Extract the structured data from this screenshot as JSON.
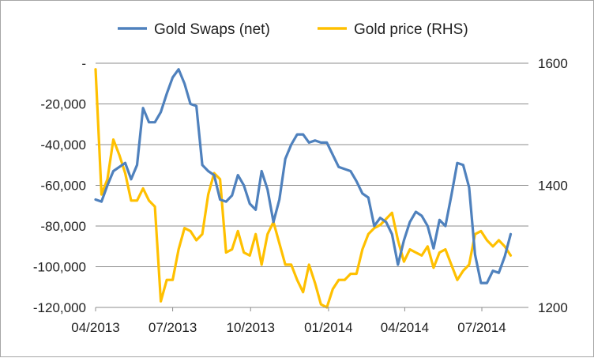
{
  "chart_data": {
    "type": "line",
    "title": "",
    "xlabel": "",
    "ylabel": "",
    "x_tick_labels": [
      "04/2013",
      "07/2013",
      "10/2013",
      "01/2014",
      "04/2014",
      "07/2014"
    ],
    "y_left": {
      "ylim": [
        -120000,
        0
      ],
      "tick_values": [
        0,
        -20000,
        -40000,
        -60000,
        -80000,
        -100000,
        -120000
      ],
      "tick_labels": [
        "-",
        "-20,000",
        "-40,000",
        "-60,000",
        "-80,000",
        "-100,000",
        "-120,000"
      ]
    },
    "y_right": {
      "ylim": [
        1200,
        1600
      ],
      "tick_values": [
        1600,
        1400,
        1200
      ],
      "tick_labels": [
        "1600",
        "1400",
        "1200"
      ]
    },
    "grid": "horizontal",
    "legend_position": "top",
    "series": [
      {
        "name": "Gold Swaps (net)",
        "axis": "left",
        "color": "#4f81bd",
        "x": [
          "2013-04-01",
          "2013-04-08",
          "2013-04-15",
          "2013-04-22",
          "2013-04-29",
          "2013-05-06",
          "2013-05-13",
          "2013-05-20",
          "2013-05-27",
          "2013-06-03",
          "2013-06-10",
          "2013-06-17",
          "2013-06-24",
          "2013-07-01",
          "2013-07-08",
          "2013-07-15",
          "2013-07-22",
          "2013-07-29",
          "2013-08-05",
          "2013-08-12",
          "2013-08-19",
          "2013-08-26",
          "2013-09-02",
          "2013-09-09",
          "2013-09-16",
          "2013-09-23",
          "2013-09-30",
          "2013-10-07",
          "2013-10-14",
          "2013-10-21",
          "2013-10-28",
          "2013-11-04",
          "2013-11-11",
          "2013-11-18",
          "2013-11-25",
          "2013-12-02",
          "2013-12-09",
          "2013-12-16",
          "2013-12-23",
          "2013-12-30",
          "2014-01-06",
          "2014-01-13",
          "2014-01-20",
          "2014-01-27",
          "2014-02-03",
          "2014-02-10",
          "2014-02-17",
          "2014-02-24",
          "2014-03-03",
          "2014-03-10",
          "2014-03-17",
          "2014-03-24",
          "2014-03-31",
          "2014-04-07",
          "2014-04-14",
          "2014-04-21",
          "2014-04-28",
          "2014-05-05",
          "2014-05-12",
          "2014-05-19",
          "2014-05-26",
          "2014-06-02",
          "2014-06-09",
          "2014-06-16",
          "2014-06-23",
          "2014-06-30",
          "2014-07-07",
          "2014-07-14",
          "2014-07-21",
          "2014-07-28",
          "2014-08-04"
        ],
        "values": [
          -67000,
          -68000,
          -60000,
          -53000,
          -51000,
          -49000,
          -57000,
          -50000,
          -22000,
          -29000,
          -29000,
          -24000,
          -15000,
          -7000,
          -3000,
          -10000,
          -20000,
          -21000,
          -50000,
          -53000,
          -55000,
          -67000,
          -68000,
          -65000,
          -55000,
          -60000,
          -69000,
          -72000,
          -53000,
          -62000,
          -78000,
          -67000,
          -47000,
          -40000,
          -35000,
          -35000,
          -39000,
          -38000,
          -39000,
          -39000,
          -45000,
          -51000,
          -52000,
          -53000,
          -58000,
          -64000,
          -66000,
          -80000,
          -76000,
          -78000,
          -84000,
          -99000,
          -87000,
          -78000,
          -73000,
          -75000,
          -80000,
          -91000,
          -77000,
          -80000,
          -65000,
          -49000,
          -50000,
          -61000,
          -94000,
          -108000,
          -108000,
          -102000,
          -103000,
          -95000,
          -84000
        ]
      },
      {
        "name": "Gold price (RHS)",
        "axis": "right",
        "color": "#ffc000",
        "x": [
          "2013-04-01",
          "2013-04-08",
          "2013-04-15",
          "2013-04-22",
          "2013-04-29",
          "2013-05-06",
          "2013-05-13",
          "2013-05-20",
          "2013-05-27",
          "2013-06-03",
          "2013-06-10",
          "2013-06-17",
          "2013-06-24",
          "2013-07-01",
          "2013-07-08",
          "2013-07-15",
          "2013-07-22",
          "2013-07-29",
          "2013-08-05",
          "2013-08-12",
          "2013-08-19",
          "2013-08-26",
          "2013-09-02",
          "2013-09-09",
          "2013-09-16",
          "2013-09-23",
          "2013-09-30",
          "2013-10-07",
          "2013-10-14",
          "2013-10-21",
          "2013-10-28",
          "2013-11-04",
          "2013-11-11",
          "2013-11-18",
          "2013-11-25",
          "2013-12-02",
          "2013-12-09",
          "2013-12-16",
          "2013-12-23",
          "2013-12-30",
          "2014-01-06",
          "2014-01-13",
          "2014-01-20",
          "2014-01-27",
          "2014-02-03",
          "2014-02-10",
          "2014-02-17",
          "2014-02-24",
          "2014-03-03",
          "2014-03-10",
          "2014-03-17",
          "2014-03-24",
          "2014-03-31",
          "2014-04-07",
          "2014-04-14",
          "2014-04-21",
          "2014-04-28",
          "2014-05-05",
          "2014-05-12",
          "2014-05-19",
          "2014-05-26",
          "2014-06-02",
          "2014-06-09",
          "2014-06-16",
          "2014-06-23",
          "2014-06-30",
          "2014-07-07",
          "2014-07-14",
          "2014-07-21",
          "2014-07-28",
          "2014-08-04"
        ],
        "values": [
          1590,
          1385,
          1410,
          1475,
          1450,
          1420,
          1375,
          1375,
          1395,
          1375,
          1365,
          1210,
          1245,
          1245,
          1295,
          1330,
          1325,
          1310,
          1320,
          1385,
          1420,
          1410,
          1290,
          1295,
          1325,
          1290,
          1285,
          1320,
          1270,
          1320,
          1340,
          1305,
          1270,
          1270,
          1245,
          1225,
          1270,
          1240,
          1205,
          1200,
          1230,
          1245,
          1245,
          1255,
          1255,
          1295,
          1320,
          1330,
          1335,
          1345,
          1355,
          1310,
          1275,
          1295,
          1290,
          1285,
          1300,
          1265,
          1290,
          1295,
          1270,
          1245,
          1260,
          1270,
          1320,
          1325,
          1310,
          1300,
          1310,
          1300,
          1285
        ]
      }
    ]
  }
}
